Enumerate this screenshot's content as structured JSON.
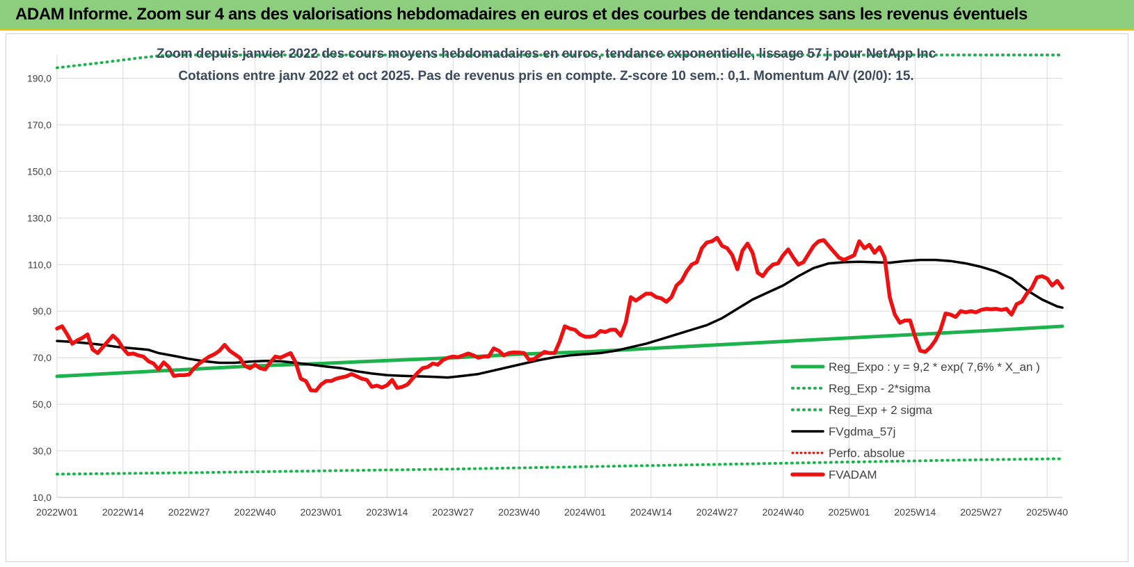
{
  "banner": {
    "title": "ADAM Informe. Zoom sur 4 ans des valorisations hebdomadaires en euros et des courbes de tendances sans les revenus éventuels"
  },
  "colors": {
    "banner_bg": "#8cce7e",
    "banner_border": "#f2c200",
    "reg_expo": "#1db34c",
    "sigma": "#1db34c",
    "fvgdma": "#000000",
    "perfo": "#e00000",
    "fvadam": "#ee1111",
    "grid": "#d9d9d9",
    "subtitle": "#3b4a5e"
  },
  "chart_data": {
    "type": "line",
    "subtitle_line1": "Zoom depuis janvier 2022 des cours moyens hebdomadaires en euros, tendance exponentielle, lissage 57 j pour NetApp Inc",
    "subtitle_line2": "Cotations entre janv 2022 et oct 2025. Pas de revenus pris en compte. Z-score 10 sem.: 0,1. Momentum A/V (20/0): 15.",
    "ylim": [
      10,
      200
    ],
    "yticks": [
      10,
      30,
      50,
      70,
      90,
      110,
      130,
      150,
      170,
      190
    ],
    "ytick_labels": [
      "10,0",
      "30,0",
      "50,0",
      "70,0",
      "90,0",
      "110,0",
      "130,0",
      "150,0",
      "170,0",
      "190,0"
    ],
    "xlim": [
      0,
      198
    ],
    "xticks": [
      0,
      13,
      26,
      39,
      52,
      65,
      78,
      91,
      104,
      117,
      130,
      143,
      156,
      169,
      182,
      195
    ],
    "xtick_labels": [
      "2022W01",
      "2022W14",
      "2022W27",
      "2022W40",
      "2023W01",
      "2023W14",
      "2023W27",
      "2023W40",
      "2024W01",
      "2024W14",
      "2024W27",
      "2024W40",
      "2025W01",
      "2025W14",
      "2025W27",
      "2025W40"
    ],
    "grid": true,
    "legend_position": "bottom-right",
    "series": [
      {
        "name": "Reg_Expo : y = 9,2 * exp( 7,6% *  X_an )",
        "style": "solid-thick",
        "points": [
          [
            0,
            62
          ],
          [
            13,
            63.5
          ],
          [
            26,
            65
          ],
          [
            39,
            66.5
          ],
          [
            52,
            67.5
          ],
          [
            65,
            68.8
          ],
          [
            78,
            70
          ],
          [
            91,
            71.5
          ],
          [
            104,
            72.5
          ],
          [
            117,
            74
          ],
          [
            130,
            75.5
          ],
          [
            143,
            77
          ],
          [
            156,
            78.5
          ],
          [
            169,
            80
          ],
          [
            182,
            81.5
          ],
          [
            198,
            83.5
          ]
        ]
      },
      {
        "name": "Reg_Exp - 2*sigma",
        "style": "dotted",
        "points": [
          [
            0,
            20
          ],
          [
            26,
            20.6
          ],
          [
            52,
            21.4
          ],
          [
            78,
            22.2
          ],
          [
            104,
            23.2
          ],
          [
            130,
            24.2
          ],
          [
            156,
            25.2
          ],
          [
            182,
            26.2
          ],
          [
            198,
            26.6
          ]
        ]
      },
      {
        "name": "Reg_Exp + 2 sigma",
        "style": "dotted",
        "points": [
          [
            0,
            194.5
          ],
          [
            8,
            196.5
          ],
          [
            16,
            198.7
          ],
          [
            20,
            199.6
          ],
          [
            24,
            200
          ],
          [
            198,
            200
          ]
        ]
      },
      {
        "name": "FVgdma_57j",
        "style": "solid",
        "points": [
          [
            0,
            77.2
          ],
          [
            3,
            76.8
          ],
          [
            6,
            76.2
          ],
          [
            9,
            75.5
          ],
          [
            12,
            74.6
          ],
          [
            15,
            74
          ],
          [
            18,
            73.4
          ],
          [
            20,
            72
          ],
          [
            23,
            70.8
          ],
          [
            26,
            69.5
          ],
          [
            29,
            68.5
          ],
          [
            32,
            67.8
          ],
          [
            35,
            67.8
          ],
          [
            38,
            68.3
          ],
          [
            41,
            68.6
          ],
          [
            44,
            68.5
          ],
          [
            47,
            67.8
          ],
          [
            50,
            67
          ],
          [
            53,
            66.2
          ],
          [
            56,
            65.5
          ],
          [
            59,
            64.2
          ],
          [
            62,
            63.2
          ],
          [
            65,
            62.5
          ],
          [
            68,
            62.2
          ],
          [
            71,
            62
          ],
          [
            74,
            61.8
          ],
          [
            77,
            61.5
          ],
          [
            80,
            62.2
          ],
          [
            83,
            63
          ],
          [
            86,
            64.5
          ],
          [
            89,
            66
          ],
          [
            92,
            67.5
          ],
          [
            95,
            69
          ],
          [
            98,
            70.2
          ],
          [
            101,
            71
          ],
          [
            104,
            71.5
          ],
          [
            107,
            72
          ],
          [
            110,
            73
          ],
          [
            113,
            74.5
          ],
          [
            116,
            76
          ],
          [
            119,
            78
          ],
          [
            122,
            80
          ],
          [
            125,
            82
          ],
          [
            128,
            84
          ],
          [
            131,
            87
          ],
          [
            134,
            91
          ],
          [
            137,
            95
          ],
          [
            140,
            98
          ],
          [
            143,
            101
          ],
          [
            146,
            105
          ],
          [
            149,
            108.5
          ],
          [
            152,
            110.5
          ],
          [
            155,
            111
          ],
          [
            158,
            111.2
          ],
          [
            161,
            111
          ],
          [
            164,
            110.8
          ],
          [
            167,
            111.5
          ],
          [
            170,
            112
          ],
          [
            173,
            112
          ],
          [
            176,
            111.5
          ],
          [
            179,
            110.5
          ],
          [
            182,
            109
          ],
          [
            185,
            107
          ],
          [
            188,
            104
          ],
          [
            191,
            99
          ],
          [
            194,
            95
          ],
          [
            197,
            92
          ],
          [
            198,
            91.5
          ]
        ]
      },
      {
        "name": "Perfo. absolue",
        "style": "dotted",
        "points": []
      },
      {
        "name": "FVADAM",
        "style": "solid-thick",
        "points": [
          [
            0,
            82.5
          ],
          [
            1,
            83.5
          ],
          [
            2,
            80
          ],
          [
            3,
            76
          ],
          [
            4,
            77.5
          ],
          [
            5,
            78.5
          ],
          [
            6,
            80
          ],
          [
            7,
            73.5
          ],
          [
            8,
            72
          ],
          [
            9,
            74.5
          ],
          [
            10,
            77
          ],
          [
            11,
            79.5
          ],
          [
            12,
            77.5
          ],
          [
            13,
            74
          ],
          [
            14,
            71.5
          ],
          [
            15,
            71.8
          ],
          [
            16,
            71
          ],
          [
            17,
            70.5
          ],
          [
            18,
            68.5
          ],
          [
            19,
            67.5
          ],
          [
            20,
            65
          ],
          [
            21,
            68
          ],
          [
            22,
            66
          ],
          [
            23,
            62.2
          ],
          [
            24,
            62.5
          ],
          [
            25,
            62.5
          ],
          [
            26,
            62.8
          ],
          [
            27,
            65.5
          ],
          [
            28,
            67.5
          ],
          [
            29,
            69
          ],
          [
            30,
            70.5
          ],
          [
            31,
            71.5
          ],
          [
            32,
            73
          ],
          [
            33,
            75.5
          ],
          [
            34,
            73
          ],
          [
            35,
            71.5
          ],
          [
            36,
            70
          ],
          [
            37,
            66.5
          ],
          [
            38,
            65.5
          ],
          [
            39,
            67
          ],
          [
            40,
            65.5
          ],
          [
            41,
            65
          ],
          [
            42,
            68
          ],
          [
            43,
            70.5
          ],
          [
            44,
            70
          ],
          [
            45,
            71
          ],
          [
            46,
            72
          ],
          [
            47,
            68
          ],
          [
            48,
            61
          ],
          [
            49,
            60
          ],
          [
            50,
            56
          ],
          [
            51,
            55.8
          ],
          [
            52,
            58.5
          ],
          [
            53,
            60
          ],
          [
            54,
            60
          ],
          [
            55,
            61
          ],
          [
            56,
            61.5
          ],
          [
            57,
            62
          ],
          [
            58,
            63
          ],
          [
            59,
            62
          ],
          [
            60,
            61
          ],
          [
            61,
            60.5
          ],
          [
            62,
            57.5
          ],
          [
            63,
            58
          ],
          [
            64,
            57.2
          ],
          [
            65,
            58.2
          ],
          [
            66,
            60.5
          ],
          [
            67,
            57
          ],
          [
            68,
            57.5
          ],
          [
            69,
            58.5
          ],
          [
            70,
            61
          ],
          [
            71,
            63.5
          ],
          [
            72,
            65.5
          ],
          [
            73,
            66
          ],
          [
            74,
            67.5
          ],
          [
            75,
            67
          ],
          [
            76,
            69
          ],
          [
            77,
            70
          ],
          [
            78,
            70.5
          ],
          [
            79,
            70.2
          ],
          [
            80,
            71
          ],
          [
            81,
            71.8
          ],
          [
            82,
            71
          ],
          [
            83,
            70
          ],
          [
            84,
            70.5
          ],
          [
            85,
            70.5
          ],
          [
            86,
            74
          ],
          [
            87,
            73
          ],
          [
            88,
            71
          ],
          [
            89,
            72
          ],
          [
            90,
            72.3
          ],
          [
            91,
            72.2
          ],
          [
            92,
            72
          ],
          [
            93,
            69
          ],
          [
            94,
            69.5
          ],
          [
            95,
            71
          ],
          [
            96,
            72.5
          ],
          [
            97,
            72
          ],
          [
            98,
            72
          ],
          [
            99,
            77
          ],
          [
            100,
            83.5
          ],
          [
            101,
            82.5
          ],
          [
            102,
            82
          ],
          [
            103,
            80
          ],
          [
            104,
            79
          ],
          [
            105,
            79
          ],
          [
            106,
            79.5
          ],
          [
            107,
            81.5
          ],
          [
            108,
            81
          ],
          [
            109,
            82
          ],
          [
            110,
            82
          ],
          [
            111,
            79.5
          ],
          [
            112,
            85
          ],
          [
            113,
            96
          ],
          [
            114,
            94.5
          ],
          [
            115,
            96
          ],
          [
            116,
            97.5
          ],
          [
            117,
            97.5
          ],
          [
            118,
            96
          ],
          [
            119,
            95.5
          ],
          [
            120,
            94
          ],
          [
            121,
            96
          ],
          [
            122,
            101
          ],
          [
            123,
            103
          ],
          [
            124,
            107
          ],
          [
            125,
            110
          ],
          [
            126,
            111
          ],
          [
            127,
            117
          ],
          [
            128,
            119.5
          ],
          [
            129,
            120
          ],
          [
            130,
            121.5
          ],
          [
            131,
            118
          ],
          [
            132,
            117
          ],
          [
            133,
            114
          ],
          [
            134,
            108
          ],
          [
            135,
            116
          ],
          [
            136,
            119
          ],
          [
            137,
            115
          ],
          [
            138,
            106.5
          ],
          [
            139,
            105
          ],
          [
            140,
            108
          ],
          [
            141,
            110
          ],
          [
            142,
            110.5
          ],
          [
            143,
            114
          ],
          [
            144,
            116.5
          ],
          [
            145,
            113
          ],
          [
            146,
            110
          ],
          [
            147,
            111
          ],
          [
            148,
            114.5
          ],
          [
            149,
            118
          ],
          [
            150,
            120
          ],
          [
            151,
            120.5
          ],
          [
            152,
            118
          ],
          [
            153,
            115.5
          ],
          [
            154,
            113
          ],
          [
            155,
            112
          ],
          [
            156,
            113
          ],
          [
            157,
            114
          ],
          [
            158,
            120
          ],
          [
            159,
            117
          ],
          [
            160,
            118.5
          ],
          [
            161,
            115
          ],
          [
            162,
            117.5
          ],
          [
            163,
            113
          ],
          [
            164,
            96
          ],
          [
            165,
            88.5
          ],
          [
            166,
            85
          ],
          [
            167,
            86
          ],
          [
            168,
            86
          ],
          [
            169,
            79
          ],
          [
            170,
            73
          ],
          [
            171,
            72.5
          ],
          [
            172,
            74.5
          ],
          [
            173,
            77.5
          ],
          [
            174,
            82
          ],
          [
            175,
            89
          ],
          [
            176,
            88.5
          ],
          [
            177,
            87.5
          ],
          [
            178,
            90
          ],
          [
            179,
            89.5
          ],
          [
            180,
            90
          ],
          [
            181,
            89.5
          ],
          [
            182,
            90.5
          ],
          [
            183,
            91
          ],
          [
            184,
            90.8
          ],
          [
            185,
            91
          ],
          [
            186,
            90.5
          ],
          [
            187,
            91
          ],
          [
            188,
            88.5
          ],
          [
            189,
            93
          ],
          [
            190,
            94
          ],
          [
            191,
            97.5
          ],
          [
            192,
            100
          ],
          [
            193,
            104.5
          ],
          [
            194,
            105
          ],
          [
            195,
            104
          ],
          [
            196,
            101
          ],
          [
            197,
            103
          ],
          [
            198,
            100
          ]
        ]
      }
    ]
  }
}
